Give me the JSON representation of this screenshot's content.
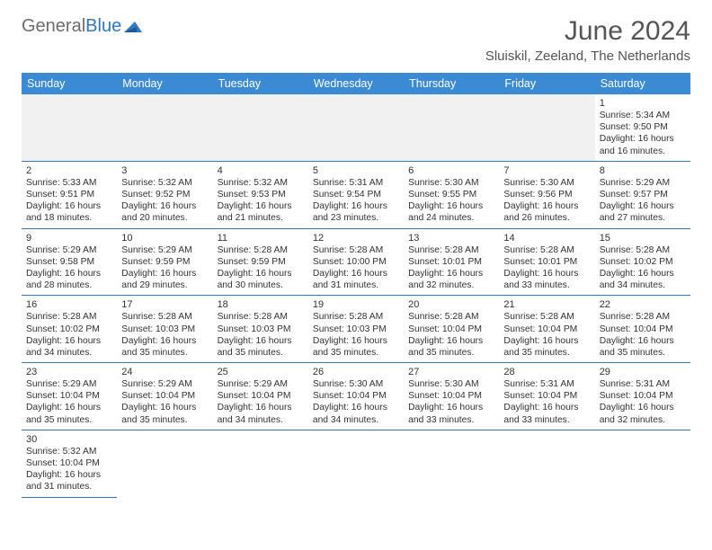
{
  "logo": {
    "text_general": "General",
    "text_blue": "Blue"
  },
  "header": {
    "title": "June 2024",
    "location": "Sluiskil, Zeeland, The Netherlands"
  },
  "calendar": {
    "day_headers": [
      "Sunday",
      "Monday",
      "Tuesday",
      "Wednesday",
      "Thursday",
      "Friday",
      "Saturday"
    ],
    "header_bg": "#3b8bd4",
    "line_color": "#2f78c2",
    "empty_bg": "#f1f1f1",
    "weeks": [
      [
        null,
        null,
        null,
        null,
        null,
        null,
        {
          "day": "1",
          "sunrise": "Sunrise: 5:34 AM",
          "sunset": "Sunset: 9:50 PM",
          "daylight1": "Daylight: 16 hours",
          "daylight2": "and 16 minutes."
        }
      ],
      [
        {
          "day": "2",
          "sunrise": "Sunrise: 5:33 AM",
          "sunset": "Sunset: 9:51 PM",
          "daylight1": "Daylight: 16 hours",
          "daylight2": "and 18 minutes."
        },
        {
          "day": "3",
          "sunrise": "Sunrise: 5:32 AM",
          "sunset": "Sunset: 9:52 PM",
          "daylight1": "Daylight: 16 hours",
          "daylight2": "and 20 minutes."
        },
        {
          "day": "4",
          "sunrise": "Sunrise: 5:32 AM",
          "sunset": "Sunset: 9:53 PM",
          "daylight1": "Daylight: 16 hours",
          "daylight2": "and 21 minutes."
        },
        {
          "day": "5",
          "sunrise": "Sunrise: 5:31 AM",
          "sunset": "Sunset: 9:54 PM",
          "daylight1": "Daylight: 16 hours",
          "daylight2": "and 23 minutes."
        },
        {
          "day": "6",
          "sunrise": "Sunrise: 5:30 AM",
          "sunset": "Sunset: 9:55 PM",
          "daylight1": "Daylight: 16 hours",
          "daylight2": "and 24 minutes."
        },
        {
          "day": "7",
          "sunrise": "Sunrise: 5:30 AM",
          "sunset": "Sunset: 9:56 PM",
          "daylight1": "Daylight: 16 hours",
          "daylight2": "and 26 minutes."
        },
        {
          "day": "8",
          "sunrise": "Sunrise: 5:29 AM",
          "sunset": "Sunset: 9:57 PM",
          "daylight1": "Daylight: 16 hours",
          "daylight2": "and 27 minutes."
        }
      ],
      [
        {
          "day": "9",
          "sunrise": "Sunrise: 5:29 AM",
          "sunset": "Sunset: 9:58 PM",
          "daylight1": "Daylight: 16 hours",
          "daylight2": "and 28 minutes."
        },
        {
          "day": "10",
          "sunrise": "Sunrise: 5:29 AM",
          "sunset": "Sunset: 9:59 PM",
          "daylight1": "Daylight: 16 hours",
          "daylight2": "and 29 minutes."
        },
        {
          "day": "11",
          "sunrise": "Sunrise: 5:28 AM",
          "sunset": "Sunset: 9:59 PM",
          "daylight1": "Daylight: 16 hours",
          "daylight2": "and 30 minutes."
        },
        {
          "day": "12",
          "sunrise": "Sunrise: 5:28 AM",
          "sunset": "Sunset: 10:00 PM",
          "daylight1": "Daylight: 16 hours",
          "daylight2": "and 31 minutes."
        },
        {
          "day": "13",
          "sunrise": "Sunrise: 5:28 AM",
          "sunset": "Sunset: 10:01 PM",
          "daylight1": "Daylight: 16 hours",
          "daylight2": "and 32 minutes."
        },
        {
          "day": "14",
          "sunrise": "Sunrise: 5:28 AM",
          "sunset": "Sunset: 10:01 PM",
          "daylight1": "Daylight: 16 hours",
          "daylight2": "and 33 minutes."
        },
        {
          "day": "15",
          "sunrise": "Sunrise: 5:28 AM",
          "sunset": "Sunset: 10:02 PM",
          "daylight1": "Daylight: 16 hours",
          "daylight2": "and 34 minutes."
        }
      ],
      [
        {
          "day": "16",
          "sunrise": "Sunrise: 5:28 AM",
          "sunset": "Sunset: 10:02 PM",
          "daylight1": "Daylight: 16 hours",
          "daylight2": "and 34 minutes."
        },
        {
          "day": "17",
          "sunrise": "Sunrise: 5:28 AM",
          "sunset": "Sunset: 10:03 PM",
          "daylight1": "Daylight: 16 hours",
          "daylight2": "and 35 minutes."
        },
        {
          "day": "18",
          "sunrise": "Sunrise: 5:28 AM",
          "sunset": "Sunset: 10:03 PM",
          "daylight1": "Daylight: 16 hours",
          "daylight2": "and 35 minutes."
        },
        {
          "day": "19",
          "sunrise": "Sunrise: 5:28 AM",
          "sunset": "Sunset: 10:03 PM",
          "daylight1": "Daylight: 16 hours",
          "daylight2": "and 35 minutes."
        },
        {
          "day": "20",
          "sunrise": "Sunrise: 5:28 AM",
          "sunset": "Sunset: 10:04 PM",
          "daylight1": "Daylight: 16 hours",
          "daylight2": "and 35 minutes."
        },
        {
          "day": "21",
          "sunrise": "Sunrise: 5:28 AM",
          "sunset": "Sunset: 10:04 PM",
          "daylight1": "Daylight: 16 hours",
          "daylight2": "and 35 minutes."
        },
        {
          "day": "22",
          "sunrise": "Sunrise: 5:28 AM",
          "sunset": "Sunset: 10:04 PM",
          "daylight1": "Daylight: 16 hours",
          "daylight2": "and 35 minutes."
        }
      ],
      [
        {
          "day": "23",
          "sunrise": "Sunrise: 5:29 AM",
          "sunset": "Sunset: 10:04 PM",
          "daylight1": "Daylight: 16 hours",
          "daylight2": "and 35 minutes."
        },
        {
          "day": "24",
          "sunrise": "Sunrise: 5:29 AM",
          "sunset": "Sunset: 10:04 PM",
          "daylight1": "Daylight: 16 hours",
          "daylight2": "and 35 minutes."
        },
        {
          "day": "25",
          "sunrise": "Sunrise: 5:29 AM",
          "sunset": "Sunset: 10:04 PM",
          "daylight1": "Daylight: 16 hours",
          "daylight2": "and 34 minutes."
        },
        {
          "day": "26",
          "sunrise": "Sunrise: 5:30 AM",
          "sunset": "Sunset: 10:04 PM",
          "daylight1": "Daylight: 16 hours",
          "daylight2": "and 34 minutes."
        },
        {
          "day": "27",
          "sunrise": "Sunrise: 5:30 AM",
          "sunset": "Sunset: 10:04 PM",
          "daylight1": "Daylight: 16 hours",
          "daylight2": "and 33 minutes."
        },
        {
          "day": "28",
          "sunrise": "Sunrise: 5:31 AM",
          "sunset": "Sunset: 10:04 PM",
          "daylight1": "Daylight: 16 hours",
          "daylight2": "and 33 minutes."
        },
        {
          "day": "29",
          "sunrise": "Sunrise: 5:31 AM",
          "sunset": "Sunset: 10:04 PM",
          "daylight1": "Daylight: 16 hours",
          "daylight2": "and 32 minutes."
        }
      ],
      [
        {
          "day": "30",
          "sunrise": "Sunrise: 5:32 AM",
          "sunset": "Sunset: 10:04 PM",
          "daylight1": "Daylight: 16 hours",
          "daylight2": "and 31 minutes."
        },
        null,
        null,
        null,
        null,
        null,
        null
      ]
    ]
  }
}
